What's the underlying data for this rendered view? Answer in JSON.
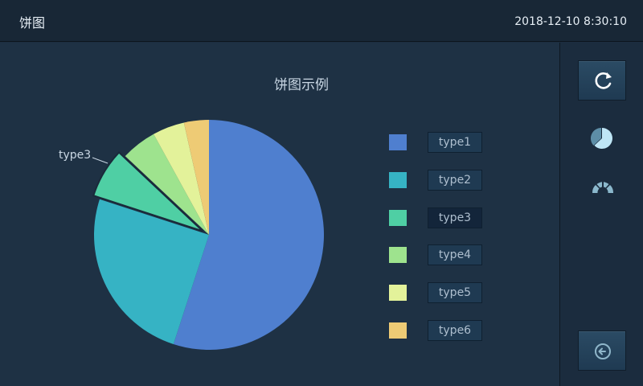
{
  "header": {
    "title": "饼图",
    "datetime": "2018-12-10   8:30:10"
  },
  "chart_data": {
    "type": "pie",
    "title": "饼图示例",
    "categories": [
      "type1",
      "type2",
      "type3",
      "type4",
      "type5",
      "type6"
    ],
    "values": [
      55,
      25,
      7,
      5,
      4.5,
      3.5
    ],
    "colors": [
      "#4f7fcf",
      "#36b3c4",
      "#4fcfa4",
      "#9ee38e",
      "#e3f29a",
      "#eecb75"
    ],
    "highlighted": "type3",
    "callout_label": "type3",
    "legend_position": "right"
  },
  "sidebar": {
    "refresh_icon": "refresh-icon",
    "pie_icon": "pie-chart-icon",
    "gauge_icon": "gauge-icon",
    "back_icon": "back-icon"
  },
  "colors": {
    "background": "#1e3144",
    "header": "#182736",
    "accent": "#8fd3ef"
  }
}
